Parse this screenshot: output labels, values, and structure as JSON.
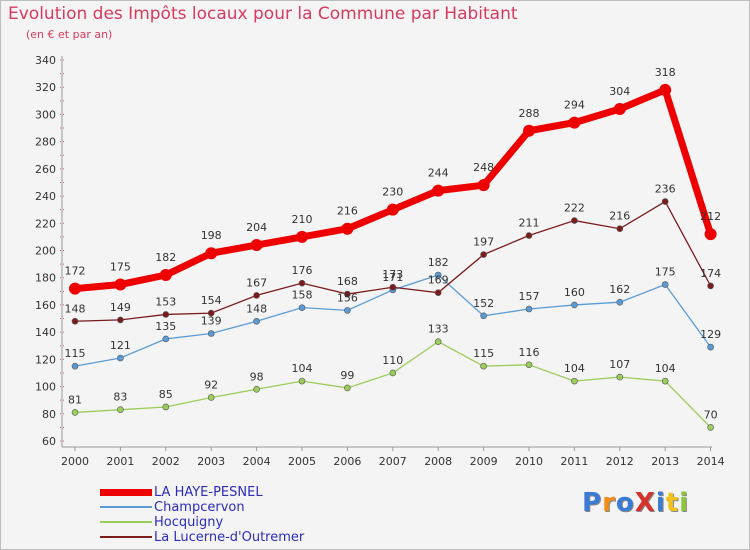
{
  "title": "Evolution des Impôts locaux pour la Commune par Habitant",
  "subtitle": "(en € et par an)",
  "logo": {
    "text": "ProXiti",
    "colors": [
      "#3a7bd5",
      "#f28c1a",
      "#3a7bd5",
      "#d6312b",
      "#3a7bd5",
      "#f2c21a",
      "#8cc63f"
    ]
  },
  "chart_data": {
    "type": "line",
    "x": [
      "2000",
      "2001",
      "2002",
      "2003",
      "2004",
      "2005",
      "2006",
      "2007",
      "2008",
      "2009",
      "2010",
      "2011",
      "2012",
      "2013",
      "2014"
    ],
    "ylim": [
      60,
      340
    ],
    "yticks": [
      "60",
      "80",
      "100",
      "120",
      "140",
      "160",
      "180",
      "200",
      "220",
      "240",
      "260",
      "280",
      "300",
      "320",
      "340"
    ],
    "grid": false,
    "legend_position": "bottom-left",
    "series": [
      {
        "name": "LA HAYE-PESNEL",
        "color": "#ee0000",
        "emphasis": true,
        "values": [
          172,
          175,
          182,
          198,
          204,
          210,
          216,
          230,
          244,
          248,
          288,
          294,
          304,
          318,
          212
        ],
        "labels": [
          "172",
          "175",
          "182",
          "198",
          "204",
          "210",
          "216",
          "230",
          "244",
          "248",
          "288",
          "294",
          "304",
          "318",
          "212"
        ]
      },
      {
        "name": "Champcervon",
        "color": "#5b9bd5",
        "values": [
          115,
          121,
          135,
          139,
          148,
          158,
          156,
          171,
          182,
          152,
          157,
          160,
          162,
          175,
          129
        ],
        "labels": [
          "115",
          "121",
          "135",
          "139",
          "148",
          "158",
          "156",
          "171",
          "182",
          "152",
          "157",
          "160",
          "162",
          "175",
          "129"
        ]
      },
      {
        "name": "Hocquigny",
        "color": "#9acd5a",
        "values": [
          81,
          83,
          85,
          92,
          98,
          104,
          99,
          110,
          133,
          115,
          116,
          104,
          107,
          104,
          70
        ],
        "labels": [
          "81",
          "83",
          "85",
          "92",
          "98",
          "104",
          "99",
          "110",
          "133",
          "115",
          "116",
          "104",
          "107",
          "104",
          "70"
        ]
      },
      {
        "name": "La Lucerne-d'Outremer",
        "color": "#7a1c1c",
        "values": [
          148,
          149,
          153,
          154,
          167,
          176,
          168,
          173,
          169,
          197,
          211,
          222,
          216,
          236,
          174
        ],
        "labels": [
          "148",
          "149",
          "153",
          "154",
          "167",
          "176",
          "168",
          "173",
          "169",
          "197",
          "211",
          "222",
          "216",
          "236",
          "174"
        ]
      }
    ]
  }
}
